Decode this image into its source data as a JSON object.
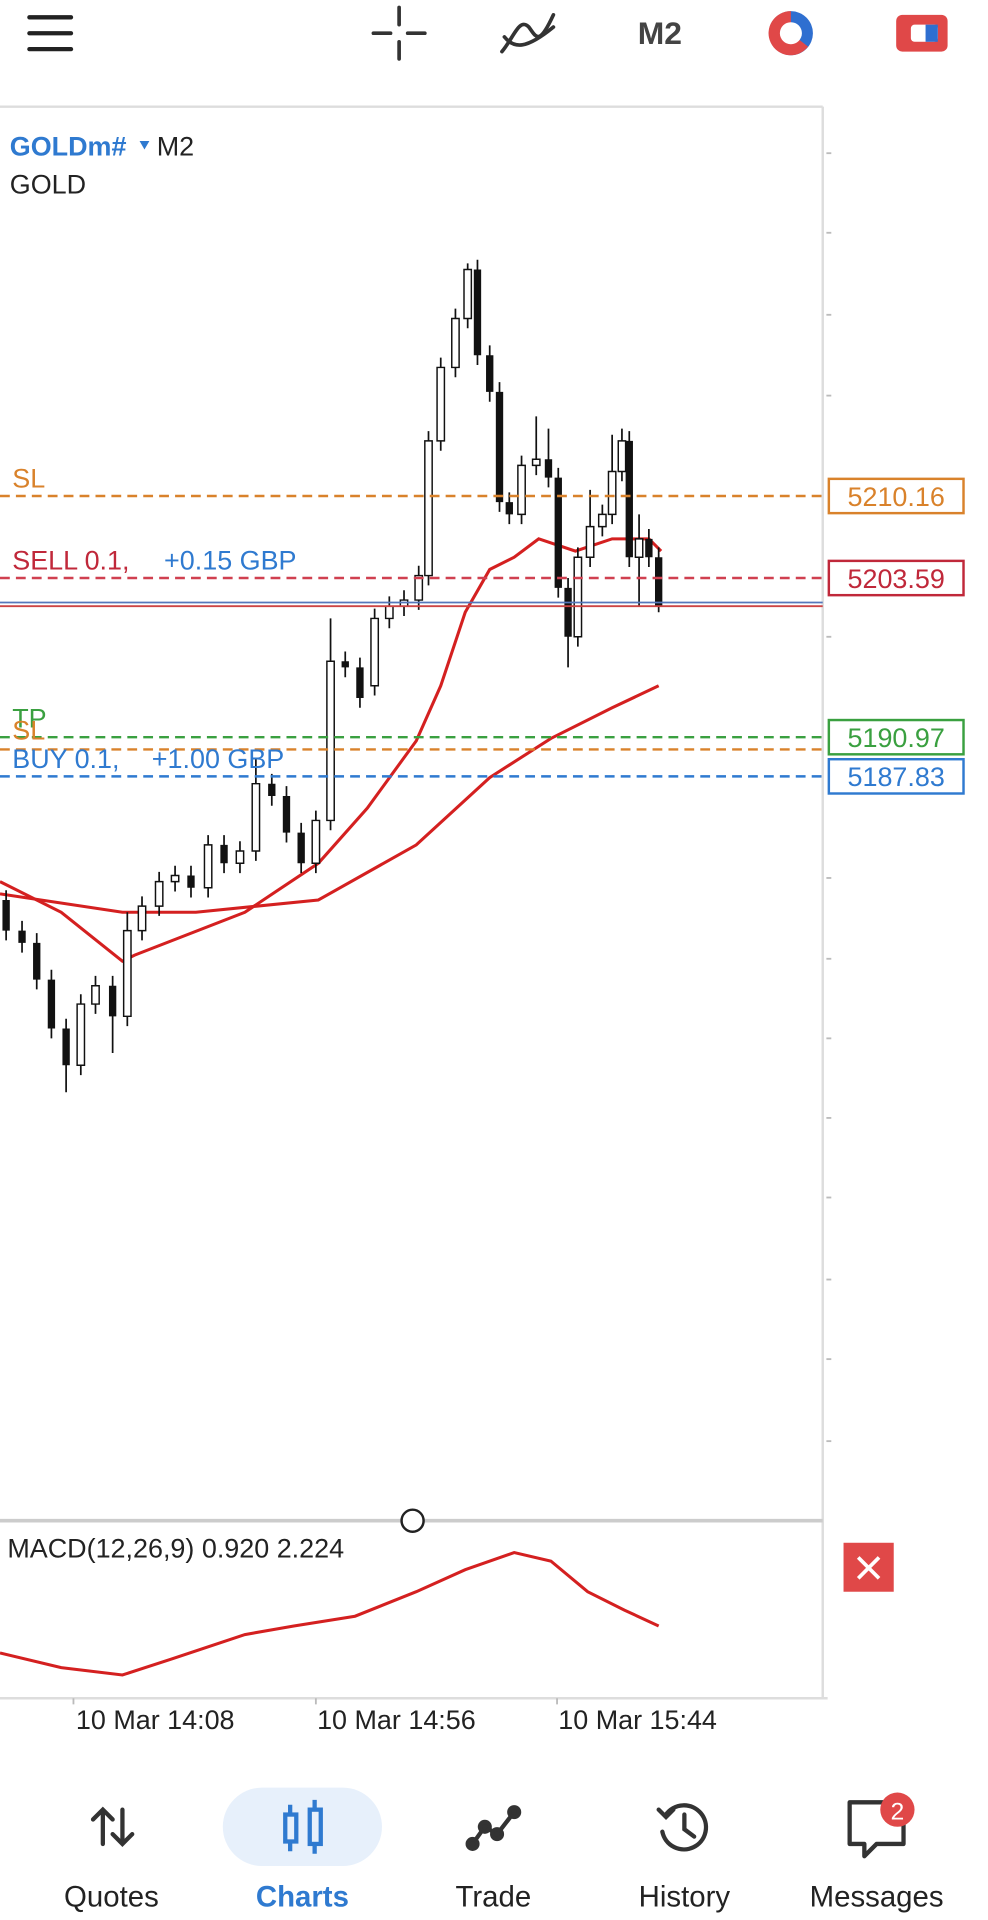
{
  "toolbar": {
    "timeframe": "M2"
  },
  "chart": {
    "symbol": "GOLDm#",
    "timeframe": "M2",
    "description": "GOLD",
    "lines": {
      "sl_1": "SL",
      "sell_order": "SELL 0.1,",
      "sell_profit": "+0.15 GBP",
      "tp": "TP",
      "sl_2": "SL",
      "buy_order": "BUY 0.1,",
      "buy_profit": "+1.00 GBP"
    },
    "price_tags": [
      "5210.16",
      "5203.59",
      "5190.97",
      "5187.83"
    ],
    "indicator": "MACD(12,26,9) 0.920 2.224",
    "time_labels": [
      "10 Mar 14:08",
      "10 Mar 14:56",
      "10 Mar 15:44"
    ]
  },
  "nav": [
    {
      "label": "Quotes"
    },
    {
      "label": "Charts"
    },
    {
      "label": "Trade"
    },
    {
      "label": "History"
    },
    {
      "label": "Messages"
    }
  ],
  "badge": "2"
}
